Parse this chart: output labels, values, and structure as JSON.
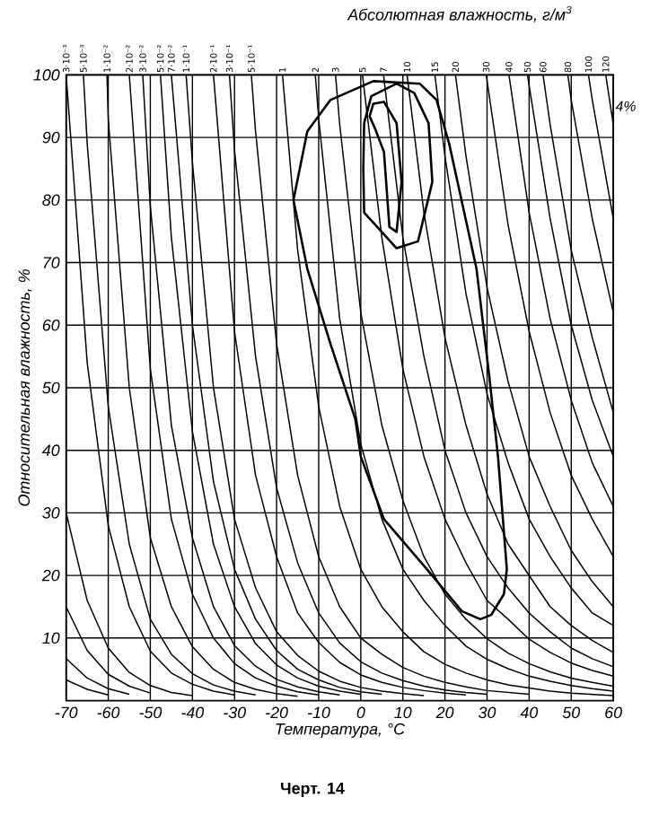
{
  "chart_data": {
    "type": "line",
    "title": "Абсолютная влажность, г/м$^{3}$",
    "xlabel": "Температура, °C",
    "ylabel": "Относительная влажность, %",
    "annotations": [
      "4%",
      "Черт. 14"
    ],
    "xlim": [
      -70,
      60
    ],
    "ylim": [
      0,
      100
    ],
    "xticks": [
      -70,
      -60,
      -50,
      -40,
      -30,
      -20,
      -10,
      0,
      10,
      20,
      30,
      40,
      50,
      60
    ],
    "yticks": [
      10,
      20,
      30,
      40,
      50,
      60,
      70,
      80,
      90,
      100
    ],
    "grid": true,
    "series": [
      {
        "color": "#000000",
        "x": [
          -70,
          -65,
          -60
        ],
        "values": [
          3.3,
          1.8,
          0.9
        ]
      },
      {
        "color": "#000000",
        "x": [
          -70,
          -65,
          -60,
          -55
        ],
        "values": [
          6.7,
          3.6,
          1.9,
          1.0
        ]
      },
      {
        "color": "#000000",
        "x": [
          -70,
          -65,
          -60,
          -55,
          -50
        ],
        "values": [
          15,
          8,
          4.2,
          2.3,
          1.2
        ]
      },
      {
        "color": "#000000",
        "x": [
          -70,
          -65,
          -60,
          -55,
          -50,
          -45,
          -40
        ],
        "values": [
          30,
          16,
          8.4,
          4.5,
          2.4,
          1.3,
          0.8
        ]
      },
      {
        "name": "3·10⁻³",
        "color": "#000000",
        "x": [
          -70,
          -65,
          -60,
          -55,
          -50,
          -45,
          -40,
          -35,
          -30
        ],
        "values": [
          100,
          54,
          28,
          15,
          7.9,
          4.4,
          2.6,
          1.5,
          0.9
        ]
      },
      {
        "name": "5·10⁻³",
        "color": "#000000",
        "x": [
          -65.9,
          -65,
          -60,
          -55,
          -50,
          -45,
          -40,
          -35,
          -30,
          -25
        ],
        "values": [
          100,
          89,
          47,
          25,
          13,
          7.4,
          4.3,
          2.5,
          1.5,
          0.9
        ]
      },
      {
        "name": "1·10⁻²",
        "color": "#000000",
        "x": [
          -60.3,
          -60,
          -55,
          -50,
          -45,
          -40,
          -35,
          -30,
          -25,
          -20,
          -15
        ],
        "values": [
          100,
          93,
          50,
          26,
          15,
          8.6,
          5,
          2.9,
          1.8,
          1.1,
          0.7
        ]
      },
      {
        "name": "2·10⁻²",
        "color": "#000000",
        "x": [
          -55,
          -50,
          -45,
          -40,
          -35,
          -30,
          -25,
          -20,
          -15,
          -10
        ],
        "values": [
          100,
          53,
          29,
          17,
          10,
          5.9,
          3.6,
          2.3,
          1.4,
          0.9
        ]
      },
      {
        "name": "3·10⁻²",
        "color": "#000000",
        "x": [
          -51.8,
          -50,
          -45,
          -40,
          -35,
          -30,
          -25,
          -20,
          -15,
          -10,
          -5
        ],
        "values": [
          100,
          79,
          44,
          26,
          15,
          8.8,
          5.5,
          3.4,
          2.2,
          1.4,
          0.9
        ]
      },
      {
        "name": "5·10⁻²",
        "color": "#000000",
        "x": [
          -47.6,
          -45,
          -40,
          -35,
          -30,
          -25,
          -20,
          -15,
          -10,
          -5,
          0
        ],
        "values": [
          100,
          74,
          43,
          25,
          15,
          9.1,
          5.7,
          3.6,
          2.3,
          1.5,
          1.0
        ]
      },
      {
        "name": "7·10⁻²",
        "color": "#000000",
        "x": [
          -45,
          -40,
          -35,
          -30,
          -25,
          -20,
          -15,
          -10,
          -5,
          0,
          5
        ],
        "values": [
          100,
          60,
          35,
          21,
          13,
          8,
          5,
          3.3,
          2.1,
          1.4,
          1.0
        ]
      },
      {
        "name": "1·10⁻¹",
        "color": "#000000",
        "x": [
          -41.5,
          -40,
          -35,
          -30,
          -25,
          -20,
          -15,
          -10,
          -5,
          0,
          5,
          10,
          15
        ],
        "values": [
          100,
          86,
          50,
          29,
          18,
          11,
          7.2,
          4.7,
          3.1,
          2.1,
          1.5,
          1.1,
          0.8
        ]
      },
      {
        "name": "2·10⁻¹",
        "color": "#000000",
        "x": [
          -35,
          -30,
          -25,
          -20,
          -15,
          -10,
          -5,
          0,
          5,
          10,
          15,
          20,
          25
        ],
        "values": [
          100,
          59,
          36,
          23,
          14,
          9.3,
          6.1,
          4.1,
          2.9,
          2.1,
          1.6,
          1.2,
          0.9
        ]
      },
      {
        "name": "3·10⁻¹",
        "color": "#000000",
        "x": [
          -31.2,
          -30,
          -25,
          -20,
          -15,
          -10,
          -5,
          0,
          5,
          10,
          15,
          20,
          25,
          30
        ],
        "values": [
          100,
          88,
          55,
          34,
          22,
          14,
          9.2,
          6.2,
          4.4,
          3.2,
          2.3,
          1.7,
          1.3,
          1.0
        ]
      },
      {
        "name": "5·10⁻¹",
        "color": "#000000",
        "x": [
          -26,
          -25,
          -20,
          -15,
          -10,
          -5,
          0,
          5,
          10,
          15,
          20,
          25,
          30,
          35,
          40
        ],
        "values": [
          100,
          91,
          57,
          36,
          23,
          15,
          10,
          7.4,
          5.3,
          3.9,
          2.9,
          2.2,
          1.6,
          1.3,
          1.0
        ]
      },
      {
        "name": "1",
        "color": "#000000",
        "x": [
          -18.6,
          -15,
          -10,
          -5,
          0,
          5,
          10,
          15,
          20,
          25,
          30,
          35,
          40,
          45,
          50,
          55,
          60
        ],
        "values": [
          100,
          72,
          47,
          31,
          21,
          15,
          11,
          7.8,
          5.8,
          4.4,
          3.3,
          2.5,
          2.0,
          1.5,
          1.2,
          1.0,
          0.8
        ]
      },
      {
        "name": "2",
        "color": "#000000",
        "x": [
          -10.8,
          -10,
          -5,
          0,
          5,
          10,
          15,
          20,
          25,
          30,
          35,
          40,
          45,
          50,
          55,
          60
        ],
        "values": [
          100,
          93,
          61,
          41,
          29,
          21,
          16,
          12,
          8.7,
          6.6,
          5.1,
          3.9,
          3.1,
          2.4,
          1.9,
          1.5
        ]
      },
      {
        "name": "3",
        "color": "#000000",
        "x": [
          -6,
          -5,
          0,
          5,
          10,
          15,
          20,
          25,
          30,
          35,
          40,
          45,
          50,
          55,
          60
        ],
        "values": [
          100,
          92,
          62,
          44,
          32,
          23,
          17,
          13,
          9.9,
          7.6,
          5.9,
          4.6,
          3.6,
          2.9,
          2.3
        ]
      },
      {
        "name": "5",
        "color": "#000000",
        "x": [
          0.4,
          5,
          10,
          15,
          20,
          25,
          30,
          35,
          40,
          45,
          50,
          55,
          60
        ],
        "values": [
          100,
          74,
          53,
          39,
          29,
          22,
          16,
          13,
          9.8,
          7.7,
          6.0,
          4.8,
          3.9
        ]
      },
      {
        "name": "7",
        "color": "#000000",
        "x": [
          5.4,
          10,
          15,
          20,
          25,
          30,
          35,
          40,
          45,
          50,
          55,
          60
        ],
        "values": [
          100,
          74,
          55,
          40,
          30,
          23,
          18,
          14,
          11,
          8.4,
          6.7,
          5.4
        ]
      },
      {
        "name": "10",
        "color": "#000000",
        "x": [
          11,
          15,
          20,
          25,
          30,
          35,
          40,
          45,
          50,
          55,
          60
        ],
        "values": [
          100,
          78,
          58,
          44,
          33,
          25,
          20,
          15,
          12,
          9.6,
          7.7
        ]
      },
      {
        "name": "15",
        "color": "#000000",
        "x": [
          17.6,
          20,
          25,
          30,
          35,
          40,
          45,
          50,
          55,
          60
        ],
        "values": [
          100,
          87,
          65,
          49,
          38,
          29,
          23,
          18,
          14,
          12
        ]
      },
      {
        "name": "20",
        "color": "#000000",
        "x": [
          22.5,
          25,
          30,
          35,
          40,
          45,
          50,
          55,
          60
        ],
        "values": [
          100,
          87,
          66,
          51,
          39,
          31,
          24,
          19,
          15
        ]
      },
      {
        "name": "30",
        "color": "#000000",
        "x": [
          29.8,
          35,
          40,
          45,
          50,
          55,
          60
        ],
        "values": [
          100,
          76,
          59,
          46,
          36,
          29,
          23
        ]
      },
      {
        "name": "40",
        "color": "#000000",
        "x": [
          35.2,
          40,
          45,
          50,
          55,
          60
        ],
        "values": [
          100,
          78,
          61,
          48,
          38,
          31
        ]
      },
      {
        "name": "50",
        "color": "#000000",
        "x": [
          39.6,
          45,
          50,
          55,
          60
        ],
        "values": [
          100,
          77,
          60,
          48,
          39
        ]
      },
      {
        "name": "60",
        "color": "#000000",
        "x": [
          43.3,
          45,
          50,
          55,
          60
        ],
        "values": [
          100,
          92,
          72,
          58,
          46
        ]
      },
      {
        "name": "80",
        "color": "#000000",
        "x": [
          49.2,
          50,
          55,
          60
        ],
        "values": [
          100,
          96,
          77,
          62
        ]
      },
      {
        "name": "100",
        "color": "#000000",
        "x": [
          54.1,
          55,
          60
        ],
        "values": [
          100,
          96,
          77
        ]
      },
      {
        "name": "120",
        "color": "#000000",
        "x": [
          58.2,
          60
        ],
        "values": [
          100,
          92
        ]
      }
    ]
  }
}
